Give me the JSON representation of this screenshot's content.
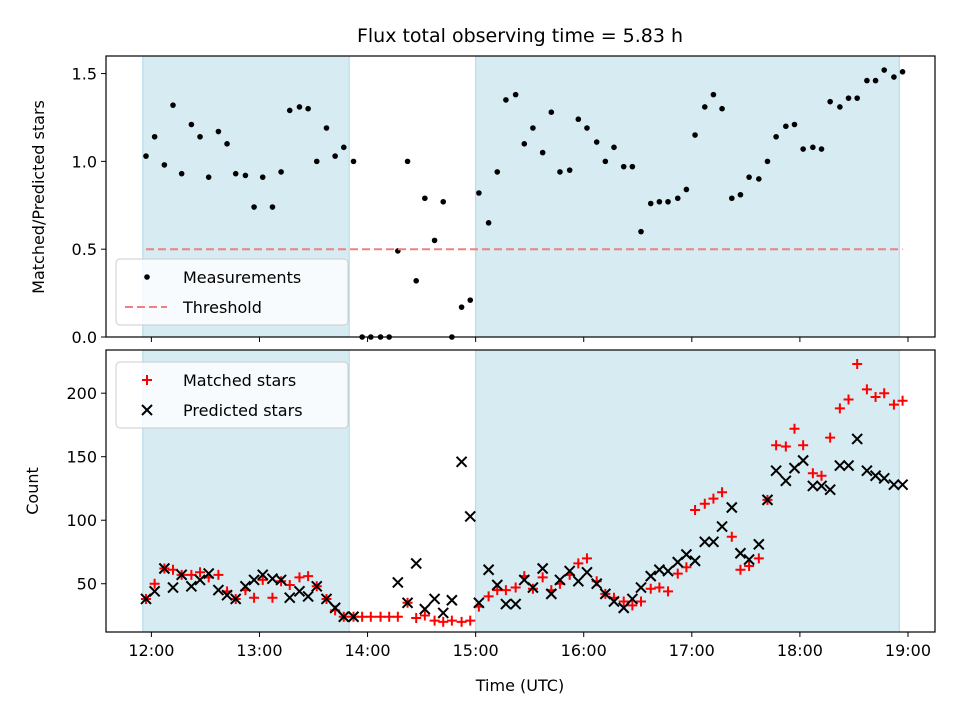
{
  "chart_data": [
    {
      "type": "scatter",
      "title": "Flux total observing time = 5.83 h",
      "ylabel": "Matched/Predicted stars",
      "xlabel": "",
      "xlim": [
        11.58,
        19.25
      ],
      "ylim": [
        0,
        1.6
      ],
      "x_ticks": [
        "12:00",
        "13:00",
        "14:00",
        "15:00",
        "16:00",
        "17:00",
        "18:00",
        "19:00"
      ],
      "y_ticks": [
        "0.0",
        "0.5",
        "1.0",
        "1.5"
      ],
      "shaded_intervals": [
        [
          11.92,
          13.83
        ],
        [
          15.0,
          18.92
        ]
      ],
      "grid": false,
      "legend_position": "lower-left",
      "series": [
        {
          "name": "Measurements",
          "marker": "dot",
          "color": "#000000",
          "points": [
            [
              11.95,
              1.03
            ],
            [
              12.03,
              1.14
            ],
            [
              12.12,
              0.98
            ],
            [
              12.2,
              1.32
            ],
            [
              12.28,
              0.93
            ],
            [
              12.37,
              1.21
            ],
            [
              12.45,
              1.14
            ],
            [
              12.53,
              0.91
            ],
            [
              12.62,
              1.17
            ],
            [
              12.7,
              1.1
            ],
            [
              12.78,
              0.93
            ],
            [
              12.87,
              0.92
            ],
            [
              12.95,
              0.74
            ],
            [
              13.03,
              0.91
            ],
            [
              13.12,
              0.74
            ],
            [
              13.2,
              0.94
            ],
            [
              13.28,
              1.29
            ],
            [
              13.37,
              1.31
            ],
            [
              13.45,
              1.3
            ],
            [
              13.53,
              1.0
            ],
            [
              13.62,
              1.19
            ],
            [
              13.7,
              1.03
            ],
            [
              13.78,
              1.08
            ],
            [
              13.87,
              1.0
            ],
            [
              13.95,
              0.0
            ],
            [
              14.03,
              0.0
            ],
            [
              14.12,
              0.0
            ],
            [
              14.2,
              0.0
            ],
            [
              14.28,
              0.49
            ],
            [
              14.37,
              1.0
            ],
            [
              14.45,
              0.32
            ],
            [
              14.53,
              0.79
            ],
            [
              14.62,
              0.55
            ],
            [
              14.7,
              0.77
            ],
            [
              14.78,
              0.0
            ],
            [
              14.87,
              0.17
            ],
            [
              14.95,
              0.21
            ],
            [
              15.03,
              0.82
            ],
            [
              15.12,
              0.65
            ],
            [
              15.2,
              0.94
            ],
            [
              15.28,
              1.35
            ],
            [
              15.37,
              1.38
            ],
            [
              15.45,
              1.1
            ],
            [
              15.53,
              1.19
            ],
            [
              15.62,
              1.05
            ],
            [
              15.7,
              1.28
            ],
            [
              15.78,
              0.94
            ],
            [
              15.87,
              0.95
            ],
            [
              15.95,
              1.24
            ],
            [
              16.03,
              1.19
            ],
            [
              16.12,
              1.11
            ],
            [
              16.2,
              1.0
            ],
            [
              16.28,
              1.08
            ],
            [
              16.37,
              0.97
            ],
            [
              16.45,
              0.97
            ],
            [
              16.53,
              0.6
            ],
            [
              16.62,
              0.76
            ],
            [
              16.7,
              0.77
            ],
            [
              16.78,
              0.77
            ],
            [
              16.87,
              0.79
            ],
            [
              16.95,
              0.84
            ],
            [
              17.03,
              1.15
            ],
            [
              17.12,
              1.31
            ],
            [
              17.2,
              1.38
            ],
            [
              17.28,
              1.3
            ],
            [
              17.37,
              0.79
            ],
            [
              17.45,
              0.81
            ],
            [
              17.53,
              0.91
            ],
            [
              17.62,
              0.9
            ],
            [
              17.7,
              1.0
            ],
            [
              17.78,
              1.14
            ],
            [
              17.87,
              1.2
            ],
            [
              17.95,
              1.21
            ],
            [
              18.03,
              1.07
            ],
            [
              18.12,
              1.08
            ],
            [
              18.2,
              1.07
            ],
            [
              18.28,
              1.34
            ],
            [
              18.37,
              1.31
            ],
            [
              18.45,
              1.36
            ],
            [
              18.53,
              1.36
            ],
            [
              18.62,
              1.46
            ],
            [
              18.7,
              1.46
            ],
            [
              18.78,
              1.52
            ],
            [
              18.87,
              1.48
            ],
            [
              18.95,
              1.51
            ]
          ]
        },
        {
          "name": "Threshold",
          "marker": "dashed-line",
          "color": "#f08080",
          "points": [
            [
              11.95,
              0.5
            ],
            [
              18.95,
              0.5
            ]
          ]
        }
      ]
    },
    {
      "type": "scatter",
      "title": "",
      "ylabel": "Count",
      "xlabel": "Time (UTC)",
      "xlim": [
        11.58,
        19.25
      ],
      "ylim": [
        12,
        234
      ],
      "x_ticks": [
        "12:00",
        "13:00",
        "14:00",
        "15:00",
        "16:00",
        "17:00",
        "18:00",
        "19:00"
      ],
      "y_ticks": [
        "50",
        "100",
        "150",
        "200"
      ],
      "shaded_intervals": [
        [
          11.92,
          13.83
        ],
        [
          15.0,
          18.92
        ]
      ],
      "grid": false,
      "legend_position": "upper-left",
      "series": [
        {
          "name": "Matched stars",
          "marker": "plus",
          "color": "#ff0000",
          "points": [
            [
              11.95,
              38
            ],
            [
              12.03,
              50
            ],
            [
              12.12,
              62
            ],
            [
              12.2,
              61
            ],
            [
              12.28,
              57
            ],
            [
              12.37,
              57
            ],
            [
              12.45,
              59
            ],
            [
              12.53,
              55
            ],
            [
              12.62,
              57
            ],
            [
              12.7,
              44
            ],
            [
              12.78,
              38
            ],
            [
              12.87,
              45
            ],
            [
              12.95,
              39
            ],
            [
              13.03,
              53
            ],
            [
              13.12,
              39
            ],
            [
              13.2,
              52
            ],
            [
              13.28,
              49
            ],
            [
              13.37,
              55
            ],
            [
              13.45,
              56
            ],
            [
              13.53,
              48
            ],
            [
              13.62,
              38
            ],
            [
              13.7,
              29
            ],
            [
              13.78,
              24
            ],
            [
              13.87,
              24
            ],
            [
              13.95,
              24
            ],
            [
              14.03,
              24
            ],
            [
              14.12,
              24
            ],
            [
              14.2,
              24
            ],
            [
              14.28,
              24
            ],
            [
              14.37,
              35
            ],
            [
              14.45,
              23
            ],
            [
              14.53,
              25
            ],
            [
              14.62,
              21
            ],
            [
              14.7,
              20
            ],
            [
              14.78,
              21
            ],
            [
              14.87,
              20
            ],
            [
              14.95,
              21
            ],
            [
              15.03,
              32
            ],
            [
              15.12,
              40
            ],
            [
              15.2,
              45
            ],
            [
              15.28,
              45
            ],
            [
              15.37,
              47
            ],
            [
              15.45,
              56
            ],
            [
              15.53,
              46
            ],
            [
              15.62,
              55
            ],
            [
              15.7,
              45
            ],
            [
              15.78,
              50
            ],
            [
              15.87,
              57
            ],
            [
              15.95,
              66
            ],
            [
              16.03,
              70
            ],
            [
              16.12,
              52
            ],
            [
              16.2,
              42
            ],
            [
              16.28,
              39
            ],
            [
              16.37,
              36
            ],
            [
              16.45,
              33
            ],
            [
              16.53,
              36
            ],
            [
              16.62,
              46
            ],
            [
              16.7,
              47
            ],
            [
              16.78,
              44
            ],
            [
              16.87,
              58
            ],
            [
              16.95,
              63
            ],
            [
              17.03,
              108
            ],
            [
              17.12,
              113
            ],
            [
              17.2,
              117
            ],
            [
              17.28,
              122
            ],
            [
              17.37,
              87
            ],
            [
              17.45,
              61
            ],
            [
              17.53,
              64
            ],
            [
              17.62,
              70
            ],
            [
              17.7,
              116
            ],
            [
              17.78,
              159
            ],
            [
              17.87,
              158
            ],
            [
              17.95,
              172
            ],
            [
              18.03,
              159
            ],
            [
              18.12,
              137
            ],
            [
              18.2,
              135
            ],
            [
              18.28,
              165
            ],
            [
              18.37,
              188
            ],
            [
              18.45,
              195
            ],
            [
              18.53,
              223
            ],
            [
              18.62,
              203
            ],
            [
              18.7,
              197
            ],
            [
              18.78,
              200
            ],
            [
              18.87,
              191
            ],
            [
              18.95,
              194
            ]
          ]
        },
        {
          "name": "Predicted stars",
          "marker": "x",
          "color": "#000000",
          "points": [
            [
              11.95,
              38
            ],
            [
              12.03,
              44
            ],
            [
              12.12,
              62
            ],
            [
              12.2,
              47
            ],
            [
              12.28,
              57
            ],
            [
              12.37,
              48
            ],
            [
              12.45,
              53
            ],
            [
              12.53,
              58
            ],
            [
              12.62,
              45
            ],
            [
              12.7,
              41
            ],
            [
              12.78,
              38
            ],
            [
              12.87,
              48
            ],
            [
              12.95,
              53
            ],
            [
              13.03,
              57
            ],
            [
              13.12,
              54
            ],
            [
              13.2,
              53
            ],
            [
              13.28,
              39
            ],
            [
              13.37,
              44
            ],
            [
              13.45,
              40
            ],
            [
              13.53,
              48
            ],
            [
              13.62,
              38
            ],
            [
              13.7,
              31
            ],
            [
              13.78,
              24
            ],
            [
              13.87,
              24
            ],
            [
              14.28,
              51
            ],
            [
              14.37,
              35
            ],
            [
              14.45,
              66
            ],
            [
              14.53,
              30
            ],
            [
              14.62,
              38
            ],
            [
              14.7,
              27
            ],
            [
              14.78,
              37
            ],
            [
              14.87,
              146
            ],
            [
              14.95,
              103
            ],
            [
              15.03,
              35
            ],
            [
              15.12,
              61
            ],
            [
              15.2,
              49
            ],
            [
              15.28,
              34
            ],
            [
              15.37,
              34
            ],
            [
              15.45,
              53
            ],
            [
              15.53,
              47
            ],
            [
              15.62,
              62
            ],
            [
              15.7,
              42
            ],
            [
              15.78,
              53
            ],
            [
              15.87,
              60
            ],
            [
              15.95,
              52
            ],
            [
              16.03,
              59
            ],
            [
              16.12,
              50
            ],
            [
              16.2,
              42
            ],
            [
              16.28,
              36
            ],
            [
              16.37,
              31
            ],
            [
              16.45,
              38
            ],
            [
              16.53,
              47
            ],
            [
              16.62,
              56
            ],
            [
              16.7,
              61
            ],
            [
              16.78,
              60
            ],
            [
              16.87,
              67
            ],
            [
              16.95,
              73
            ],
            [
              17.03,
              68
            ],
            [
              17.12,
              83
            ],
            [
              17.2,
              83
            ],
            [
              17.28,
              95
            ],
            [
              17.37,
              110
            ],
            [
              17.45,
              74
            ],
            [
              17.53,
              69
            ],
            [
              17.62,
              81
            ],
            [
              17.7,
              116
            ],
            [
              17.78,
              139
            ],
            [
              17.87,
              131
            ],
            [
              17.95,
              141
            ],
            [
              18.03,
              147
            ],
            [
              18.12,
              127
            ],
            [
              18.2,
              127
            ],
            [
              18.28,
              124
            ],
            [
              18.37,
              143
            ],
            [
              18.45,
              143
            ],
            [
              18.53,
              164
            ],
            [
              18.62,
              139
            ],
            [
              18.7,
              135
            ],
            [
              18.78,
              133
            ],
            [
              18.87,
              128
            ],
            [
              18.95,
              128
            ]
          ]
        }
      ]
    }
  ],
  "colors": {
    "shade": "#add8e6",
    "matched": "#ff0000",
    "predicted": "#000000",
    "measurements": "#000000",
    "threshold": "#f08080"
  }
}
